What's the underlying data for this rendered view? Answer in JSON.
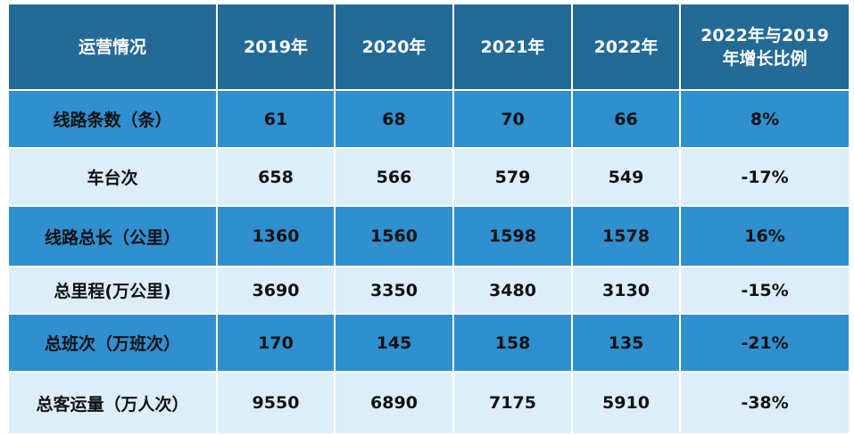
{
  "table": {
    "headers": [
      "运营情况",
      "2019年",
      "2020年",
      "2021年",
      "2022年",
      "2022年与2019\n年增长比例"
    ],
    "rows": [
      [
        "线路条数（条）",
        "61",
        "68",
        "70",
        "66",
        "8%"
      ],
      [
        "车台次",
        "658",
        "566",
        "579",
        "549",
        "-17%"
      ],
      [
        "线路总长（公里）",
        "1360",
        "1560",
        "1598",
        "1578",
        "16%"
      ],
      [
        "总里程(万公里)",
        "3690",
        "3350",
        "3480",
        "3130",
        "-15%"
      ],
      [
        "总班次（万班次）",
        "170",
        "145",
        "158",
        "135",
        "-21%"
      ],
      [
        "总客运量（万人次）",
        "9550",
        "6890",
        "7175",
        "5910",
        "-38%"
      ]
    ]
  },
  "colors": {
    "header_bg": "#236a96",
    "row_dark": "#2f8fcf",
    "row_light": "#ddeef9"
  }
}
